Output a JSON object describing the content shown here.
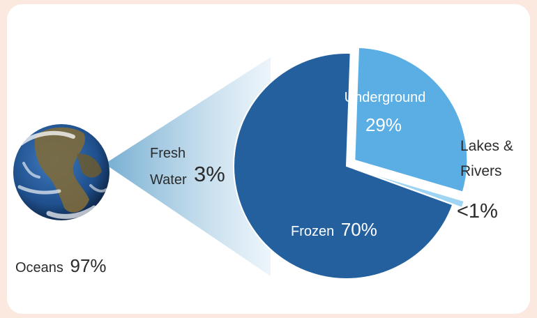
{
  "chart_data": {
    "type": "pie",
    "labels": {
      "oceans": "Oceans",
      "oceans_value": "97%",
      "fresh_line1": "Fresh",
      "fresh_line2": "Water",
      "fresh_value": "3%",
      "underground": "Underground",
      "underground_value": "29%",
      "frozen": "Frozen",
      "frozen_value": "70%",
      "lakes_line1": "Lakes &",
      "lakes_line2": "Rivers",
      "lakes_value": "<1%"
    },
    "overall": [
      {
        "name": "Oceans",
        "value": 97
      },
      {
        "name": "Fresh Water",
        "value": 3
      }
    ],
    "fresh_water_breakdown": [
      {
        "name": "Frozen",
        "value": 70,
        "color": "#25609e"
      },
      {
        "name": "Underground",
        "value": 29,
        "color": "#5aaee3",
        "exploded": true
      },
      {
        "name": "Lakes & Rivers",
        "value": 1,
        "color": "#9fd5f3",
        "exploded": true
      }
    ],
    "colors": {
      "frozen": "#25609e",
      "underground": "#5aaee3",
      "lakes_rivers": "#9fd5f3",
      "connector": "#b9d8ea",
      "globe_ocean": "#1f4f8c",
      "globe_land": "#7a6a3a"
    }
  }
}
